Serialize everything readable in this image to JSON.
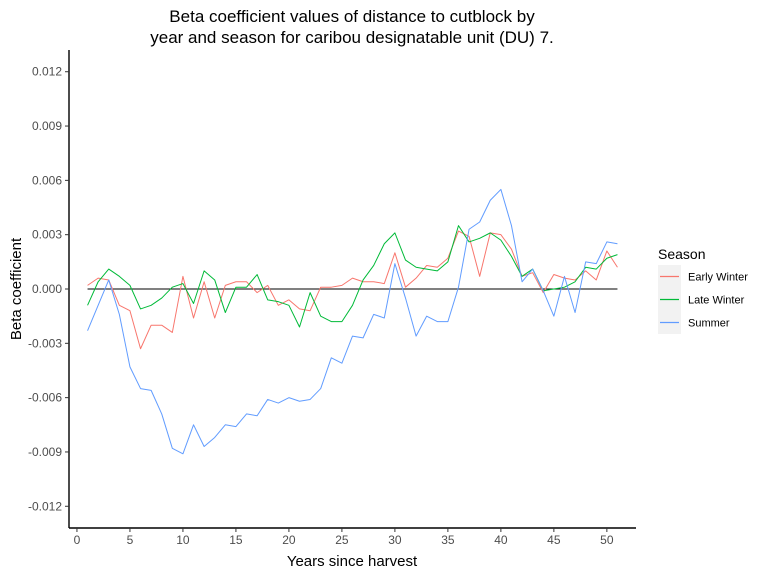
{
  "chart_data": {
    "type": "line",
    "title_lines": [
      "Beta coefficient values of distance to cutblock by",
      "year and season for caribou designatable unit (DU) 7."
    ],
    "xlabel": "Years since harvest",
    "ylabel": "Beta coefficient",
    "xlim": [
      -0.75,
      52.75
    ],
    "ylim": [
      -0.0132,
      0.0132
    ],
    "x_ticks": [
      0,
      5,
      10,
      15,
      20,
      25,
      30,
      35,
      40,
      45,
      50
    ],
    "x_tick_labels": [
      "0",
      "5",
      "10",
      "15",
      "20",
      "25",
      "30",
      "35",
      "40",
      "45",
      "50"
    ],
    "y_ticks": [
      -0.012,
      -0.009,
      -0.006,
      -0.003,
      0.0,
      0.003,
      0.006,
      0.009,
      0.012
    ],
    "y_tick_labels": [
      "-0.012",
      "-0.009",
      "-0.006",
      "-0.003",
      "0.000",
      "0.003",
      "0.006",
      "0.009",
      "0.012"
    ],
    "grid": false,
    "reference_line": {
      "y": 0,
      "x_from": 1,
      "x_to": 51,
      "color": "#000000"
    },
    "legend": {
      "title": "Season",
      "position": "right"
    },
    "x": [
      1,
      2,
      3,
      4,
      5,
      6,
      7,
      8,
      9,
      10,
      11,
      12,
      13,
      14,
      15,
      16,
      17,
      18,
      19,
      20,
      21,
      22,
      23,
      24,
      25,
      26,
      27,
      28,
      29,
      30,
      31,
      32,
      33,
      34,
      35,
      36,
      37,
      38,
      39,
      40,
      41,
      42,
      43,
      44,
      45,
      46,
      47,
      48,
      49,
      50,
      51
    ],
    "series": [
      {
        "name": "Early Winter",
        "color": "#F8766D",
        "values": [
          0.0002,
          0.0006,
          0.0005,
          -0.0009,
          -0.0012,
          -0.0033,
          -0.002,
          -0.002,
          -0.0024,
          0.0007,
          -0.0016,
          0.0004,
          -0.0016,
          0.0002,
          0.0004,
          0.0004,
          -0.0002,
          0.0002,
          -0.0009,
          -0.0006,
          -0.0011,
          -0.0012,
          0.0001,
          0.0001,
          0.0002,
          0.0006,
          0.0004,
          0.0004,
          0.0003,
          0.002,
          0.0001,
          0.0006,
          0.0013,
          0.0012,
          0.0017,
          0.0032,
          0.0029,
          0.0007,
          0.0031,
          0.003,
          0.0022,
          0.0007,
          0.0009,
          -0.0002,
          0.0008,
          0.0006,
          0.0005,
          0.001,
          0.0005,
          0.0021,
          0.0012
        ]
      },
      {
        "name": "Late Winter",
        "color": "#00BA38",
        "values": [
          -0.0009,
          0.0004,
          0.0011,
          0.0007,
          0.0002,
          -0.0011,
          -0.0009,
          -0.0005,
          0.0001,
          0.0003,
          -0.0008,
          0.001,
          0.0005,
          -0.0013,
          0.0001,
          0.0001,
          0.0008,
          -0.0006,
          -0.0007,
          -0.0009,
          -0.0021,
          -0.0002,
          -0.0015,
          -0.0018,
          -0.0018,
          -0.0009,
          0.0005,
          0.0013,
          0.0025,
          0.0031,
          0.0016,
          0.0012,
          0.0011,
          0.001,
          0.0015,
          0.0035,
          0.0026,
          0.0028,
          0.0031,
          0.0027,
          0.0018,
          0.0007,
          0.0011,
          -0.0001,
          0.0,
          0.0001,
          0.0004,
          0.0012,
          0.0011,
          0.0017,
          0.0019
        ]
      },
      {
        "name": "Summer",
        "color": "#619CFF",
        "values": [
          -0.0023,
          -0.0009,
          0.0005,
          -0.0014,
          -0.0043,
          -0.0055,
          -0.0056,
          -0.0069,
          -0.0088,
          -0.0091,
          -0.0075,
          -0.0087,
          -0.0082,
          -0.0075,
          -0.0076,
          -0.0069,
          -0.007,
          -0.0061,
          -0.0063,
          -0.006,
          -0.0062,
          -0.0061,
          -0.0055,
          -0.0038,
          -0.0041,
          -0.0026,
          -0.0027,
          -0.0014,
          -0.0016,
          0.0014,
          -0.0005,
          -0.0026,
          -0.0015,
          -0.0018,
          -0.0018,
          0.0001,
          0.0033,
          0.0037,
          0.0049,
          0.0055,
          0.0035,
          0.0004,
          0.0011,
          -0.0001,
          -0.0015,
          0.0007,
          -0.0013,
          0.0015,
          0.0014,
          0.0026,
          0.0025
        ]
      }
    ]
  }
}
